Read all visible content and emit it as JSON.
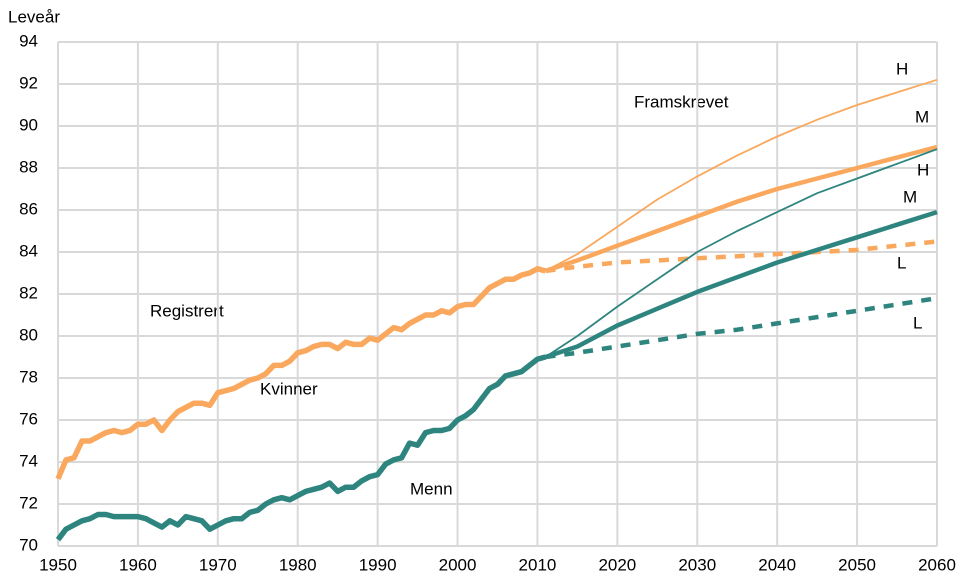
{
  "chart_data": {
    "type": "line",
    "y_label": "Leveår",
    "annotations": [
      "Registrert",
      "Framskrevet"
    ],
    "xlim": [
      1950,
      2060
    ],
    "xticks": [
      1950,
      1960,
      1970,
      1980,
      1990,
      2000,
      2010,
      2020,
      2030,
      2040,
      2050,
      2060
    ],
    "ylim": [
      70,
      94
    ],
    "yticks": [
      70,
      72,
      74,
      76,
      78,
      80,
      82,
      84,
      86,
      88,
      90,
      92,
      94
    ],
    "grid": true,
    "series": [
      {
        "name": "Kvinner",
        "color": "#f9a85d",
        "style": "thick",
        "x": [
          1950,
          1951,
          1952,
          1953,
          1954,
          1955,
          1956,
          1957,
          1958,
          1959,
          1960,
          1961,
          1962,
          1963,
          1964,
          1965,
          1966,
          1967,
          1968,
          1969,
          1970,
          1971,
          1972,
          1973,
          1974,
          1975,
          1976,
          1977,
          1978,
          1979,
          1980,
          1981,
          1982,
          1983,
          1984,
          1985,
          1986,
          1987,
          1988,
          1989,
          1990,
          1991,
          1992,
          1993,
          1994,
          1995,
          1996,
          1997,
          1998,
          1999,
          2000,
          2001,
          2002,
          2003,
          2004,
          2005,
          2006,
          2007,
          2008,
          2009,
          2010,
          2011
        ],
        "values": [
          73.2,
          74.1,
          74.2,
          75.0,
          75.0,
          75.2,
          75.4,
          75.5,
          75.4,
          75.5,
          75.8,
          75.8,
          76.0,
          75.5,
          76.0,
          76.4,
          76.6,
          76.8,
          76.8,
          76.7,
          77.3,
          77.4,
          77.5,
          77.7,
          77.9,
          78.0,
          78.2,
          78.6,
          78.6,
          78.8,
          79.2,
          79.3,
          79.5,
          79.6,
          79.6,
          79.4,
          79.7,
          79.6,
          79.6,
          79.9,
          79.8,
          80.1,
          80.4,
          80.3,
          80.6,
          80.8,
          81.0,
          81.0,
          81.2,
          81.1,
          81.4,
          81.5,
          81.5,
          81.9,
          82.3,
          82.5,
          82.7,
          82.7,
          82.9,
          83.0,
          83.2,
          83.1
        ]
      },
      {
        "name": "Menn",
        "color": "#2e857f",
        "style": "thick",
        "x": [
          1950,
          1951,
          1952,
          1953,
          1954,
          1955,
          1956,
          1957,
          1958,
          1959,
          1960,
          1961,
          1962,
          1963,
          1964,
          1965,
          1966,
          1967,
          1968,
          1969,
          1970,
          1971,
          1972,
          1973,
          1974,
          1975,
          1976,
          1977,
          1978,
          1979,
          1980,
          1981,
          1982,
          1983,
          1984,
          1985,
          1986,
          1987,
          1988,
          1989,
          1990,
          1991,
          1992,
          1993,
          1994,
          1995,
          1996,
          1997,
          1998,
          1999,
          2000,
          2001,
          2002,
          2003,
          2004,
          2005,
          2006,
          2007,
          2008,
          2009,
          2010,
          2011
        ],
        "values": [
          70.3,
          70.8,
          71.0,
          71.2,
          71.3,
          71.5,
          71.5,
          71.4,
          71.4,
          71.4,
          71.4,
          71.3,
          71.1,
          70.9,
          71.2,
          71.0,
          71.4,
          71.3,
          71.2,
          70.8,
          71.0,
          71.2,
          71.3,
          71.3,
          71.6,
          71.7,
          72.0,
          72.2,
          72.3,
          72.2,
          72.4,
          72.6,
          72.7,
          72.8,
          73.0,
          72.6,
          72.8,
          72.8,
          73.1,
          73.3,
          73.4,
          73.9,
          74.1,
          74.2,
          74.9,
          74.8,
          75.4,
          75.5,
          75.5,
          75.6,
          76.0,
          76.2,
          76.5,
          77.0,
          77.5,
          77.7,
          78.1,
          78.2,
          78.3,
          78.6,
          78.9,
          79.0
        ]
      },
      {
        "name": "H",
        "color": "#f9a85d",
        "style": "thin",
        "x": [
          2011,
          2015,
          2020,
          2025,
          2030,
          2035,
          2040,
          2045,
          2050,
          2055,
          2060
        ],
        "values": [
          83.1,
          83.9,
          85.2,
          86.5,
          87.6,
          88.6,
          89.5,
          90.3,
          91.0,
          91.6,
          92.2
        ]
      },
      {
        "name": "M",
        "color": "#f9a85d",
        "style": "medium",
        "x": [
          2011,
          2015,
          2020,
          2025,
          2030,
          2035,
          2040,
          2045,
          2050,
          2055,
          2060
        ],
        "values": [
          83.1,
          83.6,
          84.3,
          85.0,
          85.7,
          86.4,
          87.0,
          87.5,
          88.0,
          88.5,
          89.0
        ]
      },
      {
        "name": "L",
        "color": "#f9a85d",
        "style": "dashed",
        "x": [
          2011,
          2015,
          2020,
          2025,
          2030,
          2035,
          2040,
          2045,
          2050,
          2055,
          2060
        ],
        "values": [
          83.1,
          83.3,
          83.5,
          83.6,
          83.7,
          83.8,
          83.9,
          84.0,
          84.1,
          84.3,
          84.5
        ]
      },
      {
        "name": "H",
        "color": "#2e857f",
        "style": "thin",
        "x": [
          2011,
          2015,
          2020,
          2025,
          2030,
          2035,
          2040,
          2045,
          2050,
          2055,
          2060
        ],
        "values": [
          79.0,
          80.0,
          81.4,
          82.7,
          84.0,
          85.0,
          85.9,
          86.8,
          87.5,
          88.2,
          88.9
        ]
      },
      {
        "name": "M",
        "color": "#2e857f",
        "style": "medium",
        "x": [
          2011,
          2015,
          2020,
          2025,
          2030,
          2035,
          2040,
          2045,
          2050,
          2055,
          2060
        ],
        "values": [
          79.0,
          79.5,
          80.5,
          81.3,
          82.1,
          82.8,
          83.5,
          84.1,
          84.7,
          85.3,
          85.9
        ]
      },
      {
        "name": "L",
        "color": "#2e857f",
        "style": "dashed",
        "x": [
          2011,
          2015,
          2020,
          2025,
          2030,
          2035,
          2040,
          2045,
          2050,
          2055,
          2060
        ],
        "values": [
          79.0,
          79.2,
          79.5,
          79.8,
          80.1,
          80.3,
          80.6,
          80.9,
          81.2,
          81.5,
          81.8
        ]
      }
    ]
  }
}
